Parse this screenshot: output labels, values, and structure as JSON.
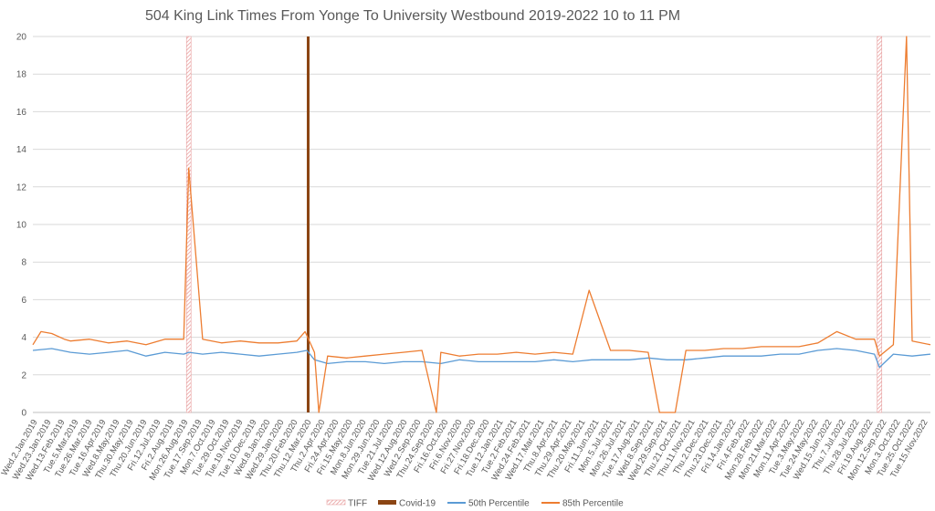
{
  "chart_data": {
    "type": "line",
    "title": "504 King Link Times From Yonge To University Westbound 2019-2022 10 to 11 PM",
    "xlabel": "",
    "ylabel": "",
    "ylim": [
      0,
      20
    ],
    "yticks": [
      0,
      2,
      4,
      6,
      8,
      10,
      12,
      14,
      16,
      18,
      20
    ],
    "grid": true,
    "legend_position": "bottom",
    "categories": [
      "Wed.2.Jan.2019",
      "Wed.23.Jan.2019",
      "Wed.13.Feb.2019",
      "Tue.5.Mar.2019",
      "Tue.26.Mar.2019",
      "Tue.16.Apr.2019",
      "Wed.8.May.2019",
      "Thu.30.May.2019",
      "Thu.20.Jun.2019",
      "Fri.12.Jul.2019",
      "Fri.2.Aug.2019",
      "Mon.26.Aug.2019",
      "Tue.17.Sep.2019",
      "Mon.7.Oct.2019",
      "Tue.29.Oct.2019",
      "Tue.19.Nov.2019",
      "Tue.10.Dec.2019",
      "Wed.8.Jan.2020",
      "Wed.29.Jan.2020",
      "Thu.20.Feb.2020",
      "Thu.12.Mar.2020",
      "Thu.2.Apr.2020",
      "Fri.24.Apr.2020",
      "Fri.15.May.2020",
      "Mon.8.Jun.2020",
      "Mon.29.Jun.2020",
      "Tue.21.Jul.2020",
      "Wed.12.Aug.2020",
      "Wed.2.Sep.2020",
      "Thu.24.Sep.2020",
      "Fri.16.Oct.2020",
      "Fri.6.Nov.2020",
      "Fri.27.Nov.2020",
      "Fri.18.Dec.2020",
      "Tue.12.Jan.2021",
      "Tue.2.Feb.2021",
      "Wed.24.Feb.2021",
      "Wed.17.Mar.2021",
      "Thu.8.Apr.2021",
      "Thu.29.Apr.2021",
      "Thu.20.May.2021",
      "Fri.11.Jun.2021",
      "Mon.5.Jul.2021",
      "Mon.26.Jul.2021",
      "Tue.17.Aug.2021",
      "Wed.8.Sep.2021",
      "Wed.29.Sep.2021",
      "Thu.21.Oct.2021",
      "Thu.11.Nov.2021",
      "Thu.2.Dec.2021",
      "Thu.23.Dec.2021",
      "Fri.14.Jan.2022",
      "Fri.4.Feb.2022",
      "Mon.28.Feb.2022",
      "Mon.21.Mar.2022",
      "Mon.11.Apr.2022",
      "Tue.3.May.2022",
      "Tue.24.May.2022",
      "Wed.15.Jun.2022",
      "Thu.7.Jul.2022",
      "Thu.28.Jul.2022",
      "Fri.19.Aug.2022",
      "Mon.12.Sep.2022",
      "Mon.3.Oct.2022",
      "Tue.25.Oct.2022",
      "Tue.15.Nov.2022"
    ],
    "events": [
      {
        "name": "TIFF",
        "color": "#e8a0a0",
        "pattern": "hatched",
        "dates": [
          "2019-09-07",
          "2022-09-10"
        ]
      },
      {
        "name": "Covid-19",
        "color": "#8b4513",
        "pattern": "solid",
        "dates": [
          "2020-03-15"
        ]
      }
    ],
    "series": [
      {
        "name": "50th Percentile",
        "color": "#5b9bd5",
        "x": [
          "2019-01-02",
          "2019-02-01",
          "2019-03-03",
          "2019-04-02",
          "2019-05-02",
          "2019-06-01",
          "2019-07-01",
          "2019-07-31",
          "2019-08-30",
          "2019-09-07",
          "2019-09-29",
          "2019-10-29",
          "2019-11-28",
          "2019-12-28",
          "2020-01-27",
          "2020-02-26",
          "2020-03-13",
          "2020-03-25",
          "2020-04-15",
          "2020-05-15",
          "2020-06-14",
          "2020-07-14",
          "2020-08-13",
          "2020-09-12",
          "2020-10-12",
          "2020-11-11",
          "2020-12-11",
          "2021-01-10",
          "2021-02-09",
          "2021-03-11",
          "2021-04-10",
          "2021-05-10",
          "2021-06-09",
          "2021-07-09",
          "2021-08-08",
          "2021-09-07",
          "2021-10-07",
          "2021-11-06",
          "2021-12-06",
          "2022-01-05",
          "2022-02-04",
          "2022-03-06",
          "2022-04-05",
          "2022-05-05",
          "2022-06-04",
          "2022-07-04",
          "2022-08-03",
          "2022-09-02",
          "2022-09-10",
          "2022-10-02",
          "2022-11-01",
          "2022-11-30"
        ],
        "values": [
          3.3,
          3.4,
          3.2,
          3.1,
          3.2,
          3.3,
          3.0,
          3.2,
          3.1,
          3.2,
          3.1,
          3.2,
          3.1,
          3.0,
          3.1,
          3.2,
          3.3,
          2.8,
          2.6,
          2.7,
          2.7,
          2.6,
          2.7,
          2.7,
          2.6,
          2.8,
          2.7,
          2.7,
          2.7,
          2.7,
          2.8,
          2.7,
          2.8,
          2.8,
          2.8,
          2.9,
          2.8,
          2.8,
          2.9,
          3.0,
          3.0,
          3.0,
          3.1,
          3.1,
          3.3,
          3.4,
          3.3,
          3.1,
          2.4,
          3.1,
          3.0,
          3.1
        ]
      },
      {
        "name": "85th Percentile",
        "color": "#ed7d31",
        "x": [
          "2019-01-02",
          "2019-01-15",
          "2019-02-01",
          "2019-02-21",
          "2019-03-03",
          "2019-04-02",
          "2019-05-02",
          "2019-06-01",
          "2019-07-01",
          "2019-07-31",
          "2019-08-30",
          "2019-09-07",
          "2019-09-29",
          "2019-10-29",
          "2019-11-28",
          "2019-12-28",
          "2020-01-27",
          "2020-02-26",
          "2020-03-10",
          "2020-03-25",
          "2020-04-01",
          "2020-04-15",
          "2020-05-15",
          "2020-06-14",
          "2020-07-14",
          "2020-08-13",
          "2020-09-12",
          "2020-10-05",
          "2020-10-12",
          "2020-11-11",
          "2020-12-11",
          "2021-01-10",
          "2021-02-09",
          "2021-03-11",
          "2021-04-10",
          "2021-05-10",
          "2021-06-05",
          "2021-07-09",
          "2021-08-08",
          "2021-09-07",
          "2021-09-25",
          "2021-10-20",
          "2021-11-06",
          "2021-12-06",
          "2022-01-05",
          "2022-02-04",
          "2022-03-06",
          "2022-04-05",
          "2022-05-05",
          "2022-06-04",
          "2022-07-04",
          "2022-08-03",
          "2022-09-02",
          "2022-09-10",
          "2022-10-02",
          "2022-10-23",
          "2022-11-01",
          "2022-11-30"
        ],
        "values": [
          3.6,
          4.3,
          4.2,
          3.9,
          3.8,
          3.9,
          3.7,
          3.8,
          3.6,
          3.9,
          3.9,
          13.0,
          3.9,
          3.7,
          3.8,
          3.7,
          3.7,
          3.8,
          4.3,
          3.2,
          0.0,
          3.0,
          2.9,
          3.0,
          3.1,
          3.2,
          3.3,
          0.0,
          3.2,
          3.0,
          3.1,
          3.1,
          3.2,
          3.1,
          3.2,
          3.1,
          6.5,
          3.3,
          3.3,
          3.2,
          0.0,
          0.0,
          3.3,
          3.3,
          3.4,
          3.4,
          3.5,
          3.5,
          3.5,
          3.7,
          4.3,
          3.9,
          3.9,
          3.0,
          3.6,
          20.0,
          3.8,
          3.6
        ]
      }
    ]
  }
}
